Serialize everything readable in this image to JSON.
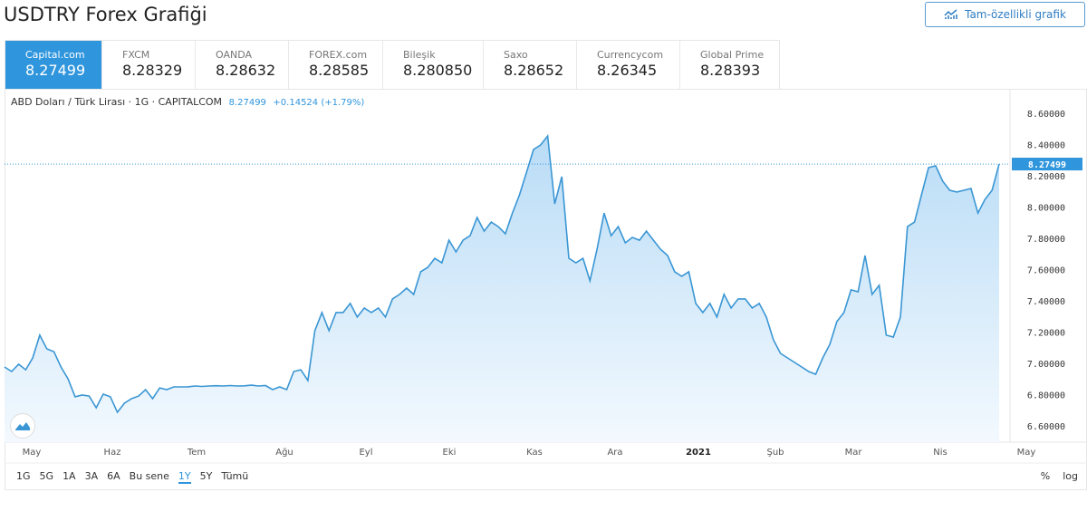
{
  "title": "USDTRY Forex Grafiği",
  "full_chart_button": "Tam-özellikli grafik",
  "tabs": [
    {
      "name": "Capital.com",
      "value": "8.27499",
      "active": true
    },
    {
      "name": "FXCM",
      "value": "8.28329"
    },
    {
      "name": "OANDA",
      "value": "8.28632"
    },
    {
      "name": "FOREX.com",
      "value": "8.28585"
    },
    {
      "name": "Bileşik",
      "value": "8.280850"
    },
    {
      "name": "Saxo",
      "value": "8.28652"
    },
    {
      "name": "Currencycom",
      "value": "8.26345"
    },
    {
      "name": "Global Prime",
      "value": "8.28393"
    }
  ],
  "legend": {
    "symbol": "ABD Doları / Türk Lirası · 1G · CAPITALCOM",
    "price": "8.27499",
    "change": "+0.14524 (+1.79%)"
  },
  "range_buttons": [
    "1G",
    "5G",
    "1A",
    "3A",
    "6A",
    "Bu sene",
    "1Y",
    "5Y",
    "Tümü"
  ],
  "range_selected": "1Y",
  "scale_buttons": [
    "%",
    "log"
  ],
  "colors": {
    "accent": "#2f95dc",
    "line": "#3a96d4",
    "fill": "#cfe6f8"
  },
  "chart_data": {
    "type": "area",
    "x_range": [
      "2020-04-21",
      "2021-04-23"
    ],
    "x_tick_labels": [
      "May",
      "Haz",
      "Tem",
      "Ağu",
      "Eyl",
      "Eki",
      "Kas",
      "Ara",
      "2021",
      "Şub",
      "Mar",
      "Nis",
      "May"
    ],
    "y_tick_labels": [
      "8.60000",
      "8.40000",
      "8.20000",
      "8.00000",
      "7.80000",
      "7.60000",
      "7.40000",
      "7.20000",
      "7.00000",
      "6.80000",
      "6.60000"
    ],
    "ylim": [
      6.6,
      8.6
    ],
    "last_price_label": "8.27499",
    "values": [
      6.977,
      6.948,
      6.994,
      6.959,
      7.035,
      7.18,
      7.093,
      7.075,
      6.977,
      6.901,
      6.786,
      6.797,
      6.791,
      6.716,
      6.803,
      6.786,
      6.687,
      6.745,
      6.774,
      6.791,
      6.832,
      6.774,
      6.843,
      6.832,
      6.849,
      6.849,
      6.85,
      6.855,
      6.852,
      6.855,
      6.857,
      6.855,
      6.858,
      6.855,
      6.856,
      6.86,
      6.855,
      6.858,
      6.832,
      6.849,
      6.832,
      6.948,
      6.959,
      6.89,
      7.209,
      7.325,
      7.209,
      7.325,
      7.325,
      7.383,
      7.296,
      7.354,
      7.325,
      7.354,
      7.296,
      7.412,
      7.441,
      7.481,
      7.441,
      7.586,
      7.614,
      7.672,
      7.643,
      7.788,
      7.713,
      7.788,
      7.817,
      7.933,
      7.846,
      7.904,
      7.875,
      7.829,
      7.962,
      8.078,
      8.223,
      8.368,
      8.397,
      8.455,
      8.02,
      8.194,
      7.672,
      7.643,
      7.672,
      7.528,
      7.73,
      7.962,
      7.817,
      7.875,
      7.771,
      7.806,
      7.788,
      7.846,
      7.788,
      7.73,
      7.69,
      7.586,
      7.557,
      7.586,
      7.383,
      7.325,
      7.383,
      7.296,
      7.441,
      7.354,
      7.412,
      7.412,
      7.354,
      7.383,
      7.296,
      7.151,
      7.064,
      7.035,
      7.006,
      6.977,
      6.948,
      6.93,
      7.035,
      7.122,
      7.267,
      7.325,
      7.47,
      7.458,
      7.69,
      7.441,
      7.499,
      7.18,
      7.168,
      7.296,
      7.875,
      7.904,
      8.078,
      8.252,
      8.264,
      8.165,
      8.107,
      8.096,
      8.107,
      8.119,
      7.962,
      8.049,
      8.107,
      8.27499
    ]
  }
}
